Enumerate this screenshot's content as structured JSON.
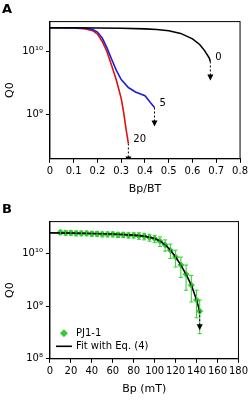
{
  "chart_data": [
    {
      "type": "line",
      "title": "A",
      "x_label": "Bp/BT",
      "y_label": "Q0",
      "log": "y",
      "grid": false,
      "xlim": [
        0,
        0.8
      ],
      "xticks": [
        0,
        0.1,
        0.2,
        0.3,
        0.4,
        0.5,
        0.6,
        0.7,
        0.8
      ],
      "ylim": [
        200000000.0,
        30000000000.0
      ],
      "yticks": [
        {
          "value": 1000000000.0,
          "label": "10⁹"
        },
        {
          "value": 10000000000.0,
          "label": "10¹⁰"
        }
      ],
      "series": [
        {
          "name": "0",
          "color": "#000000",
          "x": [
            0,
            0.1,
            0.2,
            0.3,
            0.4,
            0.45,
            0.5,
            0.55,
            0.6,
            0.63,
            0.65,
            0.67,
            0.675
          ],
          "values": [
            24000000000.0,
            24000000000.0,
            23800000000.0,
            23500000000.0,
            23000000000.0,
            22500000000.0,
            21500000000.0,
            19500000000.0,
            16000000000.0,
            13000000000.0,
            10500000000.0,
            8000000000.0,
            7000000000.0
          ]
        },
        {
          "name": "5",
          "color": "#1f1fd6",
          "x": [
            0,
            0.1,
            0.15,
            0.18,
            0.2,
            0.22,
            0.24,
            0.26,
            0.28,
            0.3,
            0.33,
            0.36,
            0.4,
            0.42,
            0.44
          ],
          "values": [
            24000000000.0,
            23800000000.0,
            23500000000.0,
            22500000000.0,
            20500000000.0,
            16500000000.0,
            11500000000.0,
            7500000000.0,
            5000000000.0,
            3600000000.0,
            2700000000.0,
            2300000000.0,
            2000000000.0,
            1600000000.0,
            1300000000.0
          ]
        },
        {
          "name": "20",
          "color": "#e01010",
          "x": [
            0,
            0.1,
            0.15,
            0.18,
            0.2,
            0.22,
            0.24,
            0.26,
            0.28,
            0.3,
            0.31,
            0.32,
            0.33
          ],
          "values": [
            24000000000.0,
            23800000000.0,
            23000000000.0,
            21500000000.0,
            19000000000.0,
            14500000000.0,
            10000000000.0,
            6000000000.0,
            3500000000.0,
            1800000000.0,
            1100000000.0,
            600000000.0,
            350000000.0
          ]
        }
      ]
    },
    {
      "type": "scatter",
      "title": "B",
      "x_label": "Bp (mT)",
      "y_label": "Q0",
      "log": "y",
      "grid": false,
      "legend": "lower left",
      "xlim": [
        0,
        180
      ],
      "xticks": [
        0,
        20,
        40,
        60,
        80,
        100,
        120,
        140,
        160,
        180
      ],
      "ylim": [
        100000000.0,
        40000000000.0
      ],
      "yticks": [
        {
          "value": 100000000.0,
          "label": "10⁸"
        },
        {
          "value": 1000000000.0,
          "label": "10⁹"
        },
        {
          "value": 10000000000.0,
          "label": "10¹⁰"
        }
      ],
      "series": [
        {
          "name": "PJ1-1",
          "color": "#33cc33",
          "marker": "diamond",
          "x": [
            10,
            15,
            20,
            25,
            30,
            35,
            40,
            45,
            50,
            55,
            60,
            65,
            70,
            75,
            80,
            85,
            90,
            95,
            100,
            105,
            110,
            115,
            120,
            125,
            130,
            135,
            140,
            143
          ],
          "values": [
            25000000000.0,
            24500000000.0,
            24500000000.0,
            24000000000.0,
            24000000000.0,
            24000000000.0,
            23500000000.0,
            23500000000.0,
            23000000000.0,
            23000000000.0,
            23000000000.0,
            22500000000.0,
            22500000000.0,
            22000000000.0,
            22000000000.0,
            21500000000.0,
            21000000000.0,
            20000000000.0,
            19000000000.0,
            17000000000.0,
            14500000000.0,
            11500000000.0,
            8500000000.0,
            6000000000.0,
            4000000000.0,
            2500000000.0,
            1300000000.0,
            800000000.0
          ],
          "errors": [
            2500000000.0,
            2500000000.0,
            2500000000.0,
            2500000000.0,
            2500000000.0,
            2500000000.0,
            2500000000.0,
            2500000000.0,
            2500000000.0,
            2500000000.0,
            2500000000.0,
            2500000000.0,
            2500000000.0,
            2500000000.0,
            2500000000.0,
            3000000000.0,
            3000000000.0,
            3000000000.0,
            3000000000.0,
            3500000000.0,
            3500000000.0,
            3500000000.0,
            3000000000.0,
            2500000000.0,
            2000000000.0,
            1300000000.0,
            700000000.0,
            500000000.0
          ]
        },
        {
          "name": "Fit with Eq. (4)",
          "color": "#000000",
          "type": "line",
          "x": [
            0,
            20,
            40,
            60,
            80,
            90,
            100,
            105,
            110,
            115,
            120,
            125,
            130,
            135,
            140,
            143
          ],
          "values": [
            24500000000.0,
            24200000000.0,
            23800000000.0,
            23200000000.0,
            22200000000.0,
            21200000000.0,
            19200000000.0,
            17200000000.0,
            14500000000.0,
            11500000000.0,
            8500000000.0,
            6000000000.0,
            4000000000.0,
            2500000000.0,
            1300000000.0,
            800000000.0
          ]
        }
      ]
    }
  ]
}
